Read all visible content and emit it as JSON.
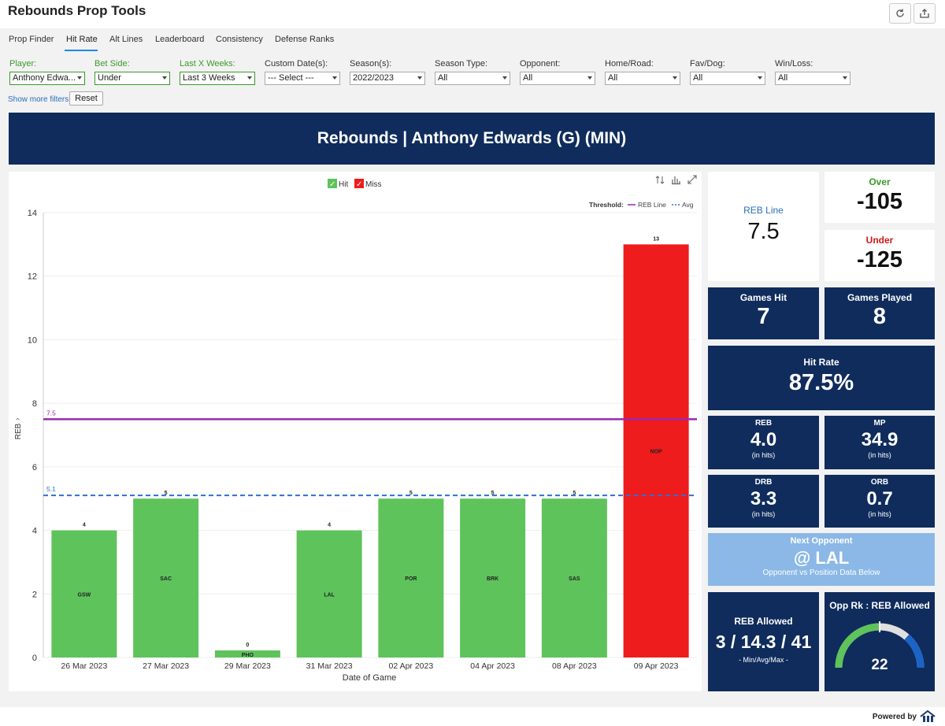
{
  "app": {
    "title": "Rebounds Prop Tools"
  },
  "tabs": [
    {
      "label": "Prop Finder"
    },
    {
      "label": "Hit Rate"
    },
    {
      "label": "Alt Lines"
    },
    {
      "label": "Leaderboard"
    },
    {
      "label": "Consistency"
    },
    {
      "label": "Defense Ranks"
    }
  ],
  "filters": [
    {
      "label": "Player:",
      "value": "Anthony Edwa..."
    },
    {
      "label": "Bet Side:",
      "value": "Under"
    },
    {
      "label": "Last X Weeks:",
      "value": "Last 3 Weeks"
    },
    {
      "label": "Custom Date(s):",
      "value": "--- Select ---"
    },
    {
      "label": "Season(s):",
      "value": "2022/2023"
    },
    {
      "label": "Season Type:",
      "value": "All"
    },
    {
      "label": "Opponent:",
      "value": "All"
    },
    {
      "label": "Home/Road:",
      "value": "All"
    },
    {
      "label": "Fav/Dog:",
      "value": "All"
    },
    {
      "label": "Win/Loss:",
      "value": "All"
    }
  ],
  "filter_actions": {
    "more_label": "Show more filters",
    "reset_label": "Reset"
  },
  "banner": {
    "title": "Rebounds | Anthony Edwards (G) (MIN)"
  },
  "chart_data": {
    "type": "bar",
    "legend": [
      {
        "label": "Hit",
        "color": "#5ec35b"
      },
      {
        "label": "Miss",
        "color": "#ee1c1c"
      }
    ],
    "threshold": {
      "label": "Threshold:",
      "line_label": "REB Line",
      "avg_label": "Avg",
      "line_value": 7.5,
      "avg_value": 5.1,
      "line_text": "7.5",
      "avg_text": "5.1"
    },
    "xlabel": "Date of Game",
    "ylabel": "REB",
    "ylim": [
      0,
      14
    ],
    "yticks": [
      0,
      2,
      4,
      6,
      8,
      10,
      12,
      14
    ],
    "categories": [
      "26 Mar 2023",
      "27 Mar 2023",
      "29 Mar 2023",
      "31 Mar 2023",
      "02 Apr 2023",
      "04 Apr 2023",
      "08 Apr 2023",
      "09 Apr 2023"
    ],
    "values": [
      4,
      5,
      0,
      4,
      5,
      5,
      5,
      13
    ],
    "opponents": [
      "GSW",
      "SAC",
      "PHO",
      "LAL",
      "POR",
      "BRK",
      "SAS",
      "NOP"
    ],
    "results": [
      "hit",
      "hit",
      "hit",
      "hit",
      "hit",
      "hit",
      "hit",
      "miss"
    ],
    "colors": {
      "hit": "#5ec35b",
      "miss": "#ee1c1c",
      "line": "#9c27b0",
      "avg": "#2f6fd1"
    }
  },
  "stats": {
    "reb_line": {
      "title": "REB Line",
      "value": "7.5"
    },
    "over": {
      "title": "Over",
      "value": "-105"
    },
    "under": {
      "title": "Under",
      "value": "-125"
    },
    "games_hit": {
      "title": "Games Hit",
      "value": "7"
    },
    "games_played": {
      "title": "Games Played",
      "value": "8"
    },
    "hit_rate": {
      "title": "Hit Rate",
      "value": "87.5%"
    },
    "reb": {
      "title": "REB",
      "value": "4.0",
      "sub": "(in hits)"
    },
    "mp": {
      "title": "MP",
      "value": "34.9",
      "sub": "(in hits)"
    },
    "drb": {
      "title": "DRB",
      "value": "3.3",
      "sub": "(in hits)"
    },
    "orb": {
      "title": "ORB",
      "value": "0.7",
      "sub": "(in hits)"
    },
    "next_opponent": {
      "title": "Next Opponent",
      "value": "@ LAL",
      "sub": "Opponent vs Position Data Below"
    },
    "reb_allowed": {
      "title": "REB Allowed",
      "value": "3 / 14.3 / 41",
      "sub": "- Min/Avg/Max -"
    },
    "opp_rank": {
      "title": "Opp Rk : REB Allowed",
      "value": "22",
      "gauge_fraction": 0.73
    }
  },
  "footer": {
    "powered_by": "Powered by"
  }
}
